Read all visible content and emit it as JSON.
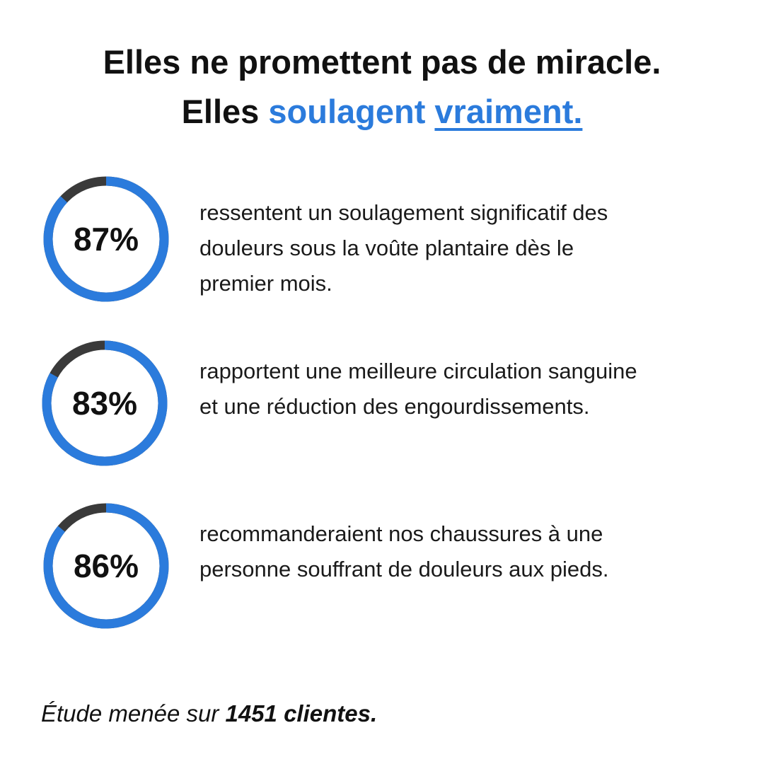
{
  "title": {
    "line1": "Elles ne promettent pas de miracle.",
    "line2_prefix": "Elles",
    "line2_highlight": "soulagent",
    "line2_underlined": "vraiment."
  },
  "stats": [
    {
      "value": 87,
      "value_label": "87%",
      "text": [
        "ressentent un soulagement significatif des",
        "douleurs sous la voûte plantaire dès le",
        "premier mois."
      ]
    },
    {
      "value": 83,
      "value_label": "83%",
      "text": [
        "rapportent une meilleure circulation sanguine",
        "et une réduction des engourdissements."
      ]
    },
    {
      "value": 86,
      "value_label": "86%",
      "text": [
        "recommanderaient nos chaussures à une",
        "personne souffrant de douleurs aux pieds."
      ]
    }
  ],
  "footer": {
    "prefix": "Étude menée sur",
    "emphasis": "1451 clientes."
  }
}
